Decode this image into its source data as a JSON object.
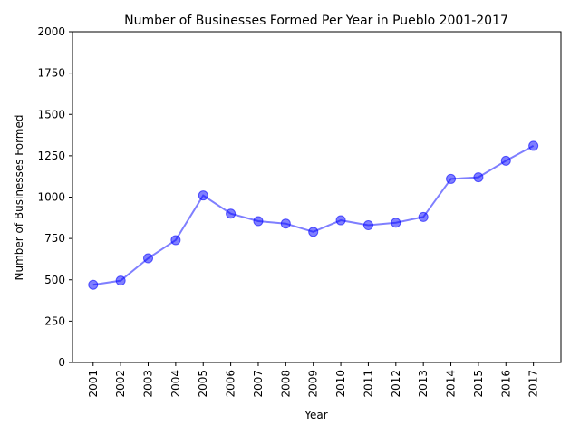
{
  "chart_data": {
    "type": "line",
    "title": "Number of Businesses Formed Per Year in Pueblo 2001-2017",
    "xlabel": "Year",
    "ylabel": "Number of Businesses Formed",
    "categories": [
      "2001",
      "2002",
      "2003",
      "2004",
      "2005",
      "2006",
      "2007",
      "2008",
      "2009",
      "2010",
      "2011",
      "2012",
      "2013",
      "2014",
      "2015",
      "2016",
      "2017"
    ],
    "series": [
      {
        "values": [
          470,
          495,
          630,
          740,
          1010,
          900,
          855,
          840,
          790,
          860,
          830,
          845,
          880,
          1110,
          1120,
          1220,
          1310
        ],
        "color": "#0000ff"
      }
    ],
    "ylim": [
      0,
      2000
    ],
    "yticks": [
      0,
      250,
      500,
      750,
      1000,
      1250,
      1500,
      1750,
      2000
    ],
    "grid": false,
    "legend": "none"
  }
}
